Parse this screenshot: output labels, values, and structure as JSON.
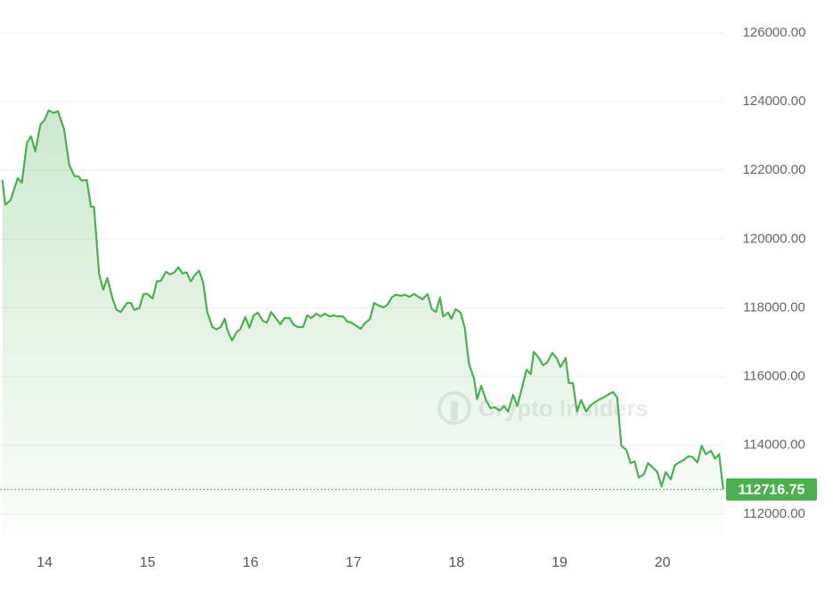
{
  "chart_data": {
    "type": "line",
    "area": true,
    "color": "#4caf50",
    "grid": true,
    "watermark": "Crypto Insiders",
    "xlim": [
      13.585,
      20.6
    ],
    "xticks": [
      14,
      15,
      16,
      17,
      18,
      19,
      20
    ],
    "ylim": [
      111400,
      126800
    ],
    "yticks": [
      {
        "value": 112000,
        "label": "112000.00"
      },
      {
        "value": 114000,
        "label": "114000.00"
      },
      {
        "value": 116000,
        "label": "116000.00"
      },
      {
        "value": 118000,
        "label": "118000.00"
      },
      {
        "value": 120000,
        "label": "120000.00"
      },
      {
        "value": 122000,
        "label": "122000.00"
      },
      {
        "value": 124000,
        "label": "124000.00"
      },
      {
        "value": 126000,
        "label": "126000.00"
      }
    ],
    "x": [
      13.59,
      13.62,
      13.67,
      13.74,
      13.78,
      13.83,
      13.87,
      13.91,
      13.96,
      14.0,
      14.04,
      14.09,
      14.13,
      14.19,
      14.24,
      14.29,
      14.33,
      14.36,
      14.41,
      14.45,
      14.48,
      14.53,
      14.57,
      14.61,
      14.66,
      14.7,
      14.74,
      14.8,
      14.84,
      14.87,
      14.92,
      14.96,
      15.0,
      15.05,
      15.09,
      15.13,
      15.18,
      15.22,
      15.26,
      15.3,
      15.34,
      15.38,
      15.42,
      15.46,
      15.5,
      15.54,
      15.58,
      15.63,
      15.67,
      15.71,
      15.75,
      15.78,
      15.82,
      15.87,
      15.9,
      15.95,
      15.99,
      16.03,
      16.07,
      16.12,
      16.16,
      16.2,
      16.25,
      16.29,
      16.33,
      16.38,
      16.42,
      16.46,
      16.51,
      16.55,
      16.59,
      16.64,
      16.68,
      16.72,
      16.77,
      16.81,
      16.85,
      16.9,
      16.94,
      16.98,
      17.03,
      17.07,
      17.11,
      17.16,
      17.2,
      17.24,
      17.29,
      17.33,
      17.37,
      17.41,
      17.46,
      17.5,
      17.54,
      17.59,
      17.63,
      17.67,
      17.72,
      17.76,
      17.8,
      17.84,
      17.87,
      17.92,
      17.95,
      17.99,
      18.04,
      18.08,
      18.12,
      18.17,
      18.2,
      18.24,
      18.29,
      18.33,
      18.37,
      18.42,
      18.46,
      18.5,
      18.55,
      18.59,
      18.63,
      18.68,
      18.72,
      18.75,
      18.8,
      18.84,
      18.88,
      18.93,
      18.97,
      19.01,
      19.06,
      19.09,
      19.13,
      19.17,
      19.21,
      19.26,
      19.3,
      19.34,
      19.39,
      19.43,
      19.47,
      19.52,
      19.56,
      19.6,
      19.65,
      19.69,
      19.73,
      19.77,
      19.82,
      19.86,
      19.9,
      19.95,
      19.99,
      20.03,
      20.08,
      20.12,
      20.16,
      20.21,
      20.25,
      20.29,
      20.34,
      20.38,
      20.42,
      20.47,
      20.51,
      20.55,
      20.59
    ],
    "values": [
      121720,
      121000,
      121130,
      121770,
      121640,
      122810,
      122990,
      122550,
      123330,
      123460,
      123740,
      123670,
      123720,
      123200,
      122160,
      121830,
      121830,
      121700,
      121720,
      120940,
      120940,
      118970,
      118530,
      118870,
      118270,
      117940,
      117880,
      118140,
      118140,
      117940,
      117990,
      118400,
      118400,
      118270,
      118770,
      118790,
      119050,
      118970,
      119030,
      119180,
      119000,
      119030,
      118770,
      118950,
      119080,
      118740,
      117880,
      117440,
      117370,
      117440,
      117680,
      117310,
      117050,
      117310,
      117370,
      117730,
      117420,
      117780,
      117860,
      117620,
      117570,
      117880,
      117680,
      117520,
      117700,
      117700,
      117500,
      117440,
      117440,
      117780,
      117700,
      117830,
      117750,
      117830,
      117750,
      117780,
      117750,
      117750,
      117600,
      117570,
      117470,
      117390,
      117550,
      117680,
      118140,
      118070,
      118010,
      118090,
      118300,
      118380,
      118350,
      118380,
      118320,
      118400,
      118320,
      118250,
      118400,
      117960,
      117880,
      118300,
      117750,
      117860,
      117680,
      117960,
      117860,
      117420,
      116380,
      115940,
      115340,
      115730,
      115290,
      115080,
      115110,
      115010,
      115140,
      114980,
      115470,
      115140,
      115600,
      116200,
      116070,
      116720,
      116540,
      116330,
      116410,
      116690,
      116540,
      116280,
      116540,
      115810,
      115810,
      114980,
      115320,
      114980,
      115160,
      115240,
      115340,
      115390,
      115470,
      115550,
      115390,
      113990,
      113860,
      113480,
      113530,
      113060,
      113160,
      113480,
      113370,
      113220,
      112800,
      113220,
      113010,
      113420,
      113500,
      113580,
      113680,
      113660,
      113500,
      113990,
      113740,
      113840,
      113610,
      113740,
      112716.75
    ]
  }
}
